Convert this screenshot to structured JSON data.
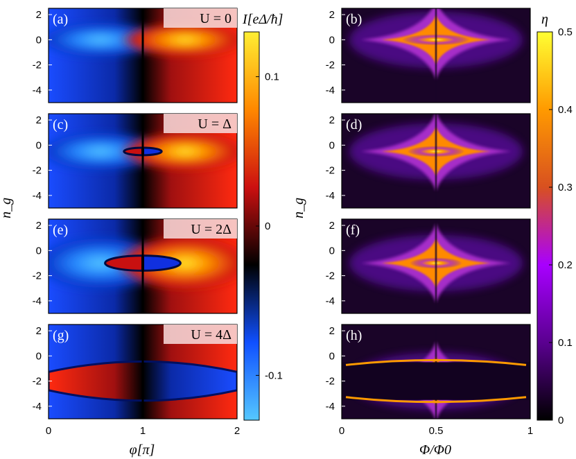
{
  "chart_data": [
    {
      "type": "heatmap",
      "panel": "(a)",
      "annotation": "U = 0",
      "xlabel": "φ[π]",
      "ylabel": "n_g",
      "xlim": [
        0,
        2
      ],
      "ylim": [
        -5,
        2.5
      ],
      "colorbar": "current",
      "lobes": [
        {
          "x": 0.55,
          "y": 0,
          "w": 0.7,
          "h": 0.9,
          "sign": -1,
          "level": 0.13
        },
        {
          "x": 1.45,
          "y": 0,
          "w": 0.7,
          "h": 0.9,
          "sign": 1,
          "level": 0.13
        }
      ]
    },
    {
      "type": "heatmap",
      "panel": "(b)",
      "annotation": "",
      "xlabel": "Φ/Φ0",
      "ylabel": "n_g",
      "xlim": [
        0,
        1
      ],
      "ylim": [
        -5,
        2.5
      ],
      "colorbar": "efficiency",
      "center_y": 0,
      "peak": 0.45
    },
    {
      "type": "heatmap",
      "panel": "(c)",
      "annotation": "U = Δ",
      "xlabel": "φ[π]",
      "ylabel": "n_g",
      "xlim": [
        0,
        2
      ],
      "ylim": [
        -5,
        2.5
      ],
      "colorbar": "current",
      "inner_ellipse": {
        "x": 1.0,
        "y": -0.5,
        "rx": 0.2,
        "ry": 0.3
      },
      "lobes": [
        {
          "x": 0.55,
          "y": -0.5,
          "w": 0.7,
          "h": 1.0,
          "sign": -1,
          "level": 0.12
        },
        {
          "x": 1.45,
          "y": -0.5,
          "w": 0.7,
          "h": 1.0,
          "sign": 1,
          "level": 0.12
        }
      ]
    },
    {
      "type": "heatmap",
      "panel": "(d)",
      "annotation": "",
      "xlabel": "Φ/Φ0",
      "ylabel": "n_g",
      "xlim": [
        0,
        1
      ],
      "ylim": [
        -5,
        2.5
      ],
      "colorbar": "efficiency",
      "center_y": -0.5,
      "peak": 0.38
    },
    {
      "type": "heatmap",
      "panel": "(e)",
      "annotation": "U = 2Δ",
      "xlabel": "φ[π]",
      "ylabel": "n_g",
      "xlim": [
        0,
        2
      ],
      "ylim": [
        -5,
        2.5
      ],
      "colorbar": "current",
      "inner_ellipse": {
        "x": 1.0,
        "y": -1.0,
        "rx": 0.4,
        "ry": 0.6
      },
      "lobes": [
        {
          "x": 0.55,
          "y": -1.0,
          "w": 0.75,
          "h": 1.4,
          "sign": -1,
          "level": 0.12
        },
        {
          "x": 1.45,
          "y": -1.0,
          "w": 0.75,
          "h": 1.4,
          "sign": 1,
          "level": 0.12
        }
      ]
    },
    {
      "type": "heatmap",
      "panel": "(f)",
      "annotation": "",
      "xlabel": "Φ/Φ0",
      "ylabel": "n_g",
      "xlim": [
        0,
        1
      ],
      "ylim": [
        -5,
        2.5
      ],
      "colorbar": "efficiency",
      "center_y": -1.0,
      "peak": 0.35
    },
    {
      "type": "heatmap",
      "panel": "(g)",
      "annotation": "U = 4Δ",
      "xlabel": "φ[π]",
      "ylabel": "n_g",
      "xlim": [
        0,
        2
      ],
      "ylim": [
        -5,
        2.5
      ],
      "colorbar": "current",
      "inverted_band": {
        "y_top": -0.5,
        "y_bottom": -3.5
      }
    },
    {
      "type": "heatmap",
      "panel": "(h)",
      "annotation": "",
      "xlabel": "Φ/Φ0",
      "ylabel": "n_g",
      "xlim": [
        0,
        1
      ],
      "ylim": [
        -5,
        2.5
      ],
      "colorbar": "efficiency",
      "center_y": -2.0,
      "peak": 0.4,
      "band": {
        "y_top": -0.5,
        "y_bottom": -3.5
      }
    }
  ],
  "left_axis": {
    "xlabel": "φ[π]",
    "ylabel": "n_g",
    "xticks": [
      "0",
      "1",
      "2"
    ],
    "yticks": [
      "2",
      "0",
      "-2",
      "-4"
    ]
  },
  "right_axis": {
    "xlabel": "Φ/Φ0",
    "ylabel": "n_g",
    "xticks": [
      "0",
      "0.5",
      "1"
    ],
    "yticks": [
      "2",
      "0",
      "-2",
      "-4"
    ]
  },
  "colorbar_current": {
    "title": "I[eΔ/ħ]",
    "ticks": [
      "0.1",
      "0",
      "-0.1"
    ],
    "tick_values": [
      0.1,
      0,
      -0.1
    ],
    "range": [
      -0.13,
      0.13
    ],
    "colors": [
      "#55c8ff",
      "#1050ff",
      "#000000",
      "#cc1010",
      "#ff8800",
      "#ffee33"
    ]
  },
  "colorbar_efficiency": {
    "title": "η",
    "ticks": [
      "0.5",
      "0.4",
      "0.3",
      "0.2",
      "0.1",
      "0"
    ],
    "tick_values": [
      0.5,
      0.4,
      0.3,
      0.2,
      0.1,
      0
    ],
    "range": [
      0,
      0.5
    ],
    "colors": [
      "#000000",
      "#5a0090",
      "#a800ff",
      "#d85020",
      "#ff9a00",
      "#ffff33"
    ]
  }
}
